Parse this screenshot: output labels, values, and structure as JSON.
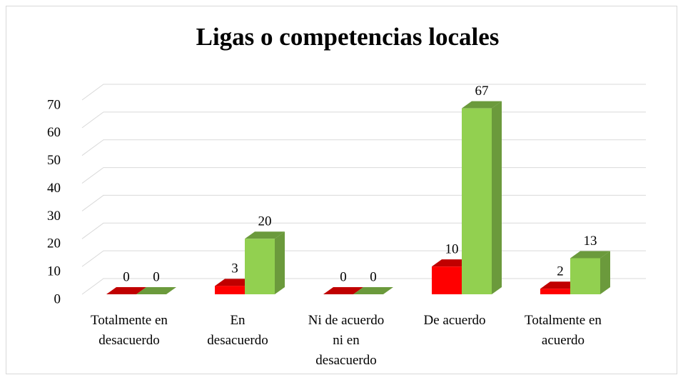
{
  "chart_data": {
    "type": "bar3d",
    "title": "Ligas o competencias locales",
    "categories": [
      "Totalmente en\ndesacuerdo",
      "En\ndesacuerdo",
      "Ni de acuerdo\nni en\ndesacuerdo",
      "De acuerdo",
      "Totalmente en\nacuerdo"
    ],
    "series": [
      {
        "color": "#ff0000",
        "side_color": "#c00000",
        "values": [
          0,
          3,
          0,
          10,
          2
        ]
      },
      {
        "color": "#92d050",
        "side_color": "#6b9a3c",
        "values": [
          0,
          20,
          0,
          67,
          13
        ]
      }
    ],
    "ylim": [
      0,
      70
    ],
    "yticks": [
      0,
      10,
      20,
      30,
      40,
      50,
      60,
      70
    ],
    "grid": true
  }
}
